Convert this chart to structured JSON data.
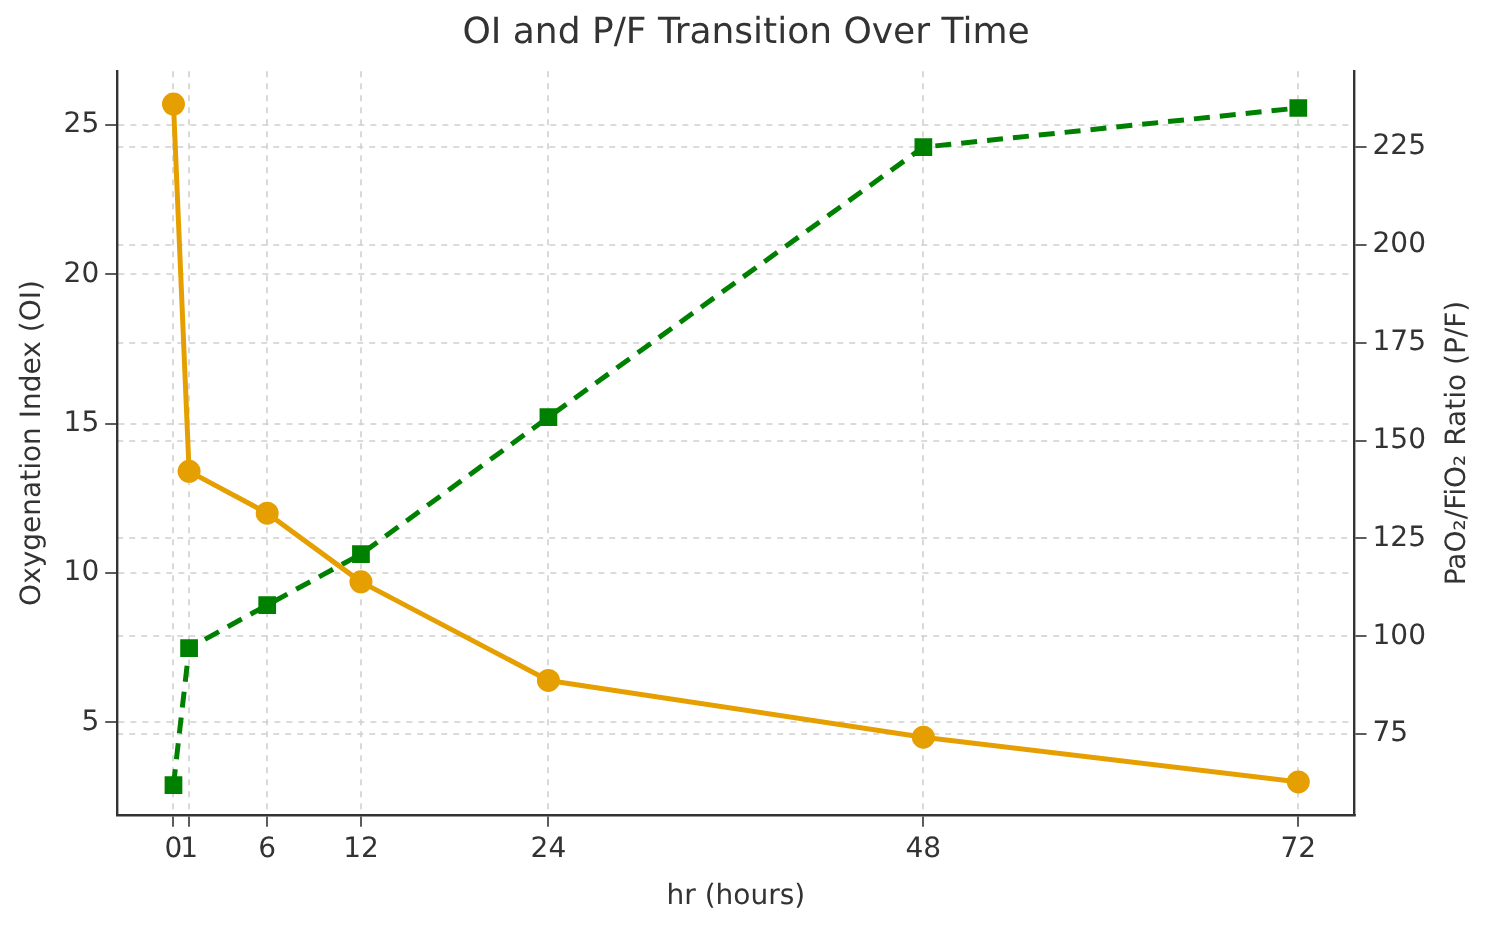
{
  "chart_data": {
    "type": "line",
    "title": "OI and P/F Transition Over Time",
    "xlabel": "hr (hours)",
    "ylabel": "Oxygenation Index (OI)",
    "y2label": "PaO₂/FiO₂ Ratio (P/F)",
    "x": [
      0,
      1,
      6,
      12,
      24,
      48,
      72
    ],
    "series": [
      {
        "color": "#e69f00",
        "values": [
          25.7,
          13.4,
          12.0,
          9.7,
          6.4,
          4.5,
          3.0
        ],
        "marker": "circle",
        "line_style": "solid"
      },
      {
        "color": "#008000",
        "values": [
          62,
          97,
          108,
          121,
          156,
          225,
          235
        ],
        "axis": "y2",
        "marker": "square",
        "line_style": "dashed"
      }
    ],
    "xlim": [
      -3.6,
      75.6
    ],
    "xticks": [
      0,
      1,
      6,
      12,
      24,
      48,
      72
    ],
    "ylim": [
      1.9,
      26.8
    ],
    "yticks": [
      5,
      10,
      15,
      20,
      25
    ],
    "y2lim": [
      54.4,
      244.4
    ],
    "y2ticks": [
      75,
      100,
      125,
      150,
      175,
      200,
      225
    ],
    "grid": true,
    "legend": false
  }
}
